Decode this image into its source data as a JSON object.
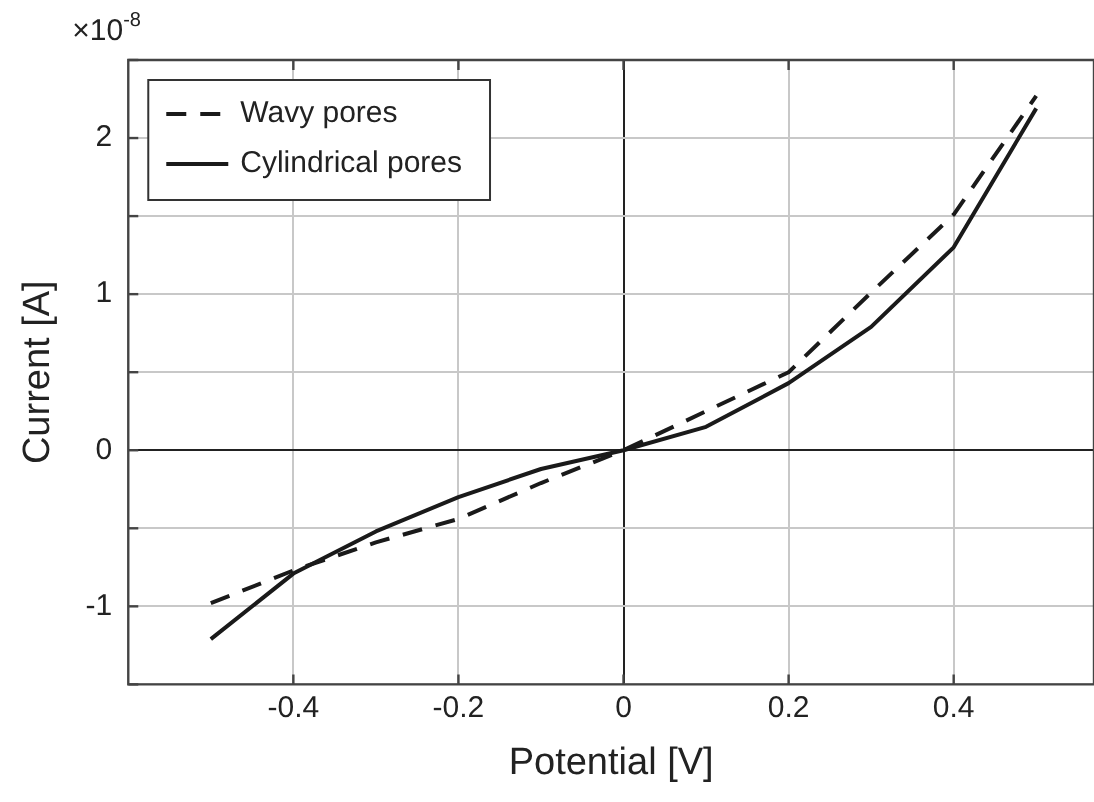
{
  "chart_data": {
    "type": "line",
    "xlabel": "Potential [V]",
    "ylabel": "Current [A]",
    "annotations": [
      "×10$^{-8}$"
    ],
    "x": [
      -0.5,
      -0.4,
      -0.3,
      -0.2,
      -0.1,
      0,
      0.1,
      0.2,
      0.3,
      0.4,
      0.5
    ],
    "series": [
      {
        "name": "Wavy pores",
        "color": "#1a1a1a",
        "line_style": "dashed",
        "values": [
          -0.98,
          -0.77,
          -0.59,
          -0.44,
          -0.21,
          0,
          0.25,
          0.5,
          1.01,
          1.51,
          2.27
        ]
      },
      {
        "name": "Cylindrical pores",
        "color": "#1a1a1a",
        "line_style": "solid",
        "values": [
          -1.21,
          -0.79,
          -0.52,
          -0.3,
          -0.12,
          0,
          0.15,
          0.43,
          0.79,
          1.3,
          2.19
        ]
      }
    ],
    "xlim": [
      -0.6,
      0.57
    ],
    "xticks": [
      -0.4,
      -0.2,
      0,
      0.2,
      0.4
    ],
    "ylim": [
      -1.5,
      2.5
    ],
    "yticks": [
      {
        "value": -1.5,
        "label": null
      },
      -1,
      {
        "value": -0.5,
        "label": null
      },
      0,
      {
        "value": 0.5,
        "label": null
      },
      1,
      {
        "value": 1.5,
        "label": null
      },
      2,
      {
        "value": 2.5,
        "label": null
      }
    ],
    "grid": true,
    "legend": "top left",
    "marker": "none"
  }
}
